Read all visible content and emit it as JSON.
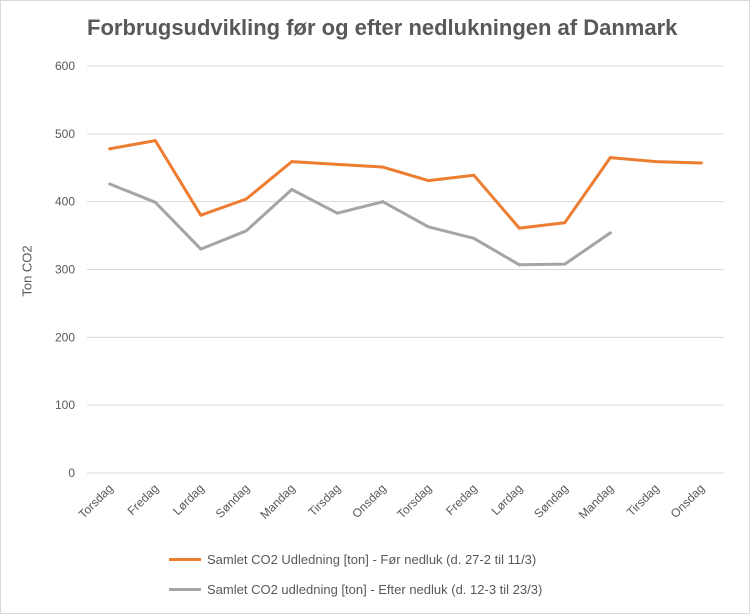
{
  "chart_data": {
    "type": "line",
    "title": "Forbrugsudvikling før og efter nedlukningen af Danmark",
    "ylabel": "Ton CO2",
    "xlabel": "",
    "ylim": [
      0,
      600
    ],
    "yticks": [
      0,
      100,
      200,
      300,
      400,
      500,
      600
    ],
    "grid": true,
    "legend_position": "bottom",
    "categories": [
      "Torsdag",
      "Fredag",
      "Lørdag",
      "Søndag",
      "Mandag",
      "Tirsdag",
      "Onsdag",
      "Torsdag",
      "Fredag",
      "Lørdag",
      "Søndag",
      "Mandag",
      "Tirsdag",
      "Onsdag"
    ],
    "series": [
      {
        "name": "Samlet CO2 Udledning [ton] - Før nedluk (d. 27-2 til 11/3)",
        "color": "#ed7d31",
        "values": [
          478,
          490,
          380,
          404,
          459,
          455,
          451,
          431,
          439,
          361,
          369,
          465,
          459,
          457
        ]
      },
      {
        "name": "Samlet CO2 udledning [ton] - Efter nedluk (d. 12-3 til 23/3)",
        "color": "#a5a5a5",
        "values": [
          426,
          399,
          330,
          357,
          418,
          383,
          400,
          363,
          346,
          307,
          308,
          354,
          null,
          null
        ]
      }
    ]
  }
}
